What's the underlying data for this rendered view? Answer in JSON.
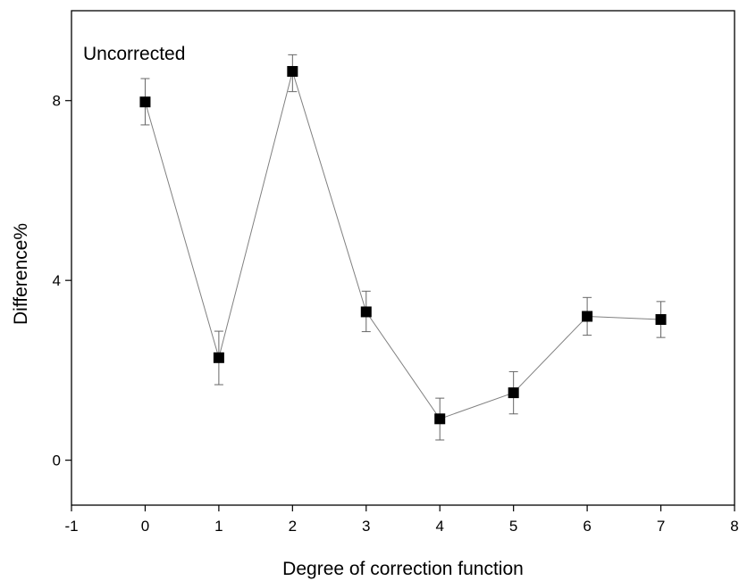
{
  "chart_data": {
    "type": "scatter",
    "title": "",
    "annotation": "Uncorrected",
    "xlabel": "Degree of correction function",
    "ylabel": "Difference%",
    "xlim": [
      -1,
      8
    ],
    "ylim": [
      -1,
      10
    ],
    "x_ticks": [
      -1,
      0,
      1,
      2,
      3,
      4,
      5,
      6,
      7,
      8
    ],
    "y_ticks": [
      0,
      4,
      8
    ],
    "grid": false,
    "legend": "none",
    "series": [
      {
        "marker": "square",
        "color": "#000000",
        "line_color": "#808080",
        "x": [
          0,
          1,
          2,
          3,
          4,
          5,
          6,
          7
        ],
        "y": [
          7.97,
          2.28,
          8.65,
          3.3,
          0.92,
          1.5,
          3.2,
          3.13
        ],
        "err_high": [
          8.49,
          2.87,
          9.02,
          3.76,
          1.38,
          1.97,
          3.62,
          3.53
        ],
        "err_low": [
          7.46,
          1.68,
          8.2,
          2.86,
          0.45,
          1.03,
          2.78,
          2.73
        ]
      }
    ]
  }
}
